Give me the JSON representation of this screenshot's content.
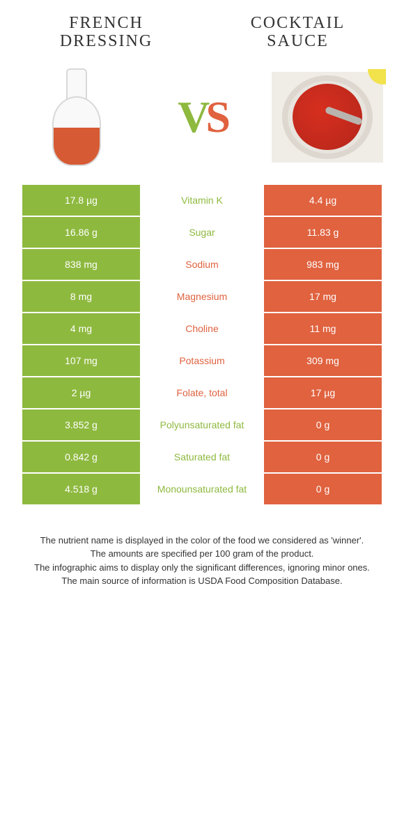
{
  "colors": {
    "left": "#8eb93f",
    "right": "#e0623f",
    "page_bg": "#ffffff",
    "text": "#333333"
  },
  "left_food": {
    "title": "FRENCH DRESSING"
  },
  "right_food": {
    "title": "COCKTAIL SAUCE"
  },
  "vs": {
    "v": "V",
    "s": "S"
  },
  "nutrients": [
    {
      "label": "Vitamin K",
      "left": "17.8 µg",
      "right": "4.4 µg",
      "winner": "left"
    },
    {
      "label": "Sugar",
      "left": "16.86 g",
      "right": "11.83 g",
      "winner": "left"
    },
    {
      "label": "Sodium",
      "left": "838 mg",
      "right": "983 mg",
      "winner": "right"
    },
    {
      "label": "Magnesium",
      "left": "8 mg",
      "right": "17 mg",
      "winner": "right"
    },
    {
      "label": "Choline",
      "left": "4 mg",
      "right": "11 mg",
      "winner": "right"
    },
    {
      "label": "Potassium",
      "left": "107 mg",
      "right": "309 mg",
      "winner": "right"
    },
    {
      "label": "Folate, total",
      "left": "2 µg",
      "right": "17 µg",
      "winner": "right"
    },
    {
      "label": "Polyunsaturated fat",
      "left": "3.852 g",
      "right": "0 g",
      "winner": "left"
    },
    {
      "label": "Saturated fat",
      "left": "0.842 g",
      "right": "0 g",
      "winner": "left"
    },
    {
      "label": "Monounsaturated fat",
      "left": "4.518 g",
      "right": "0 g",
      "winner": "left"
    }
  ],
  "footer": {
    "line1": "The nutrient name is displayed in the color of the food we considered as 'winner'.",
    "line2": "The amounts are specified per 100 gram of the product.",
    "line3": "The infographic aims to display only the significant differences, ignoring minor ones.",
    "line4": "The main source of information is USDA Food Composition Database."
  }
}
